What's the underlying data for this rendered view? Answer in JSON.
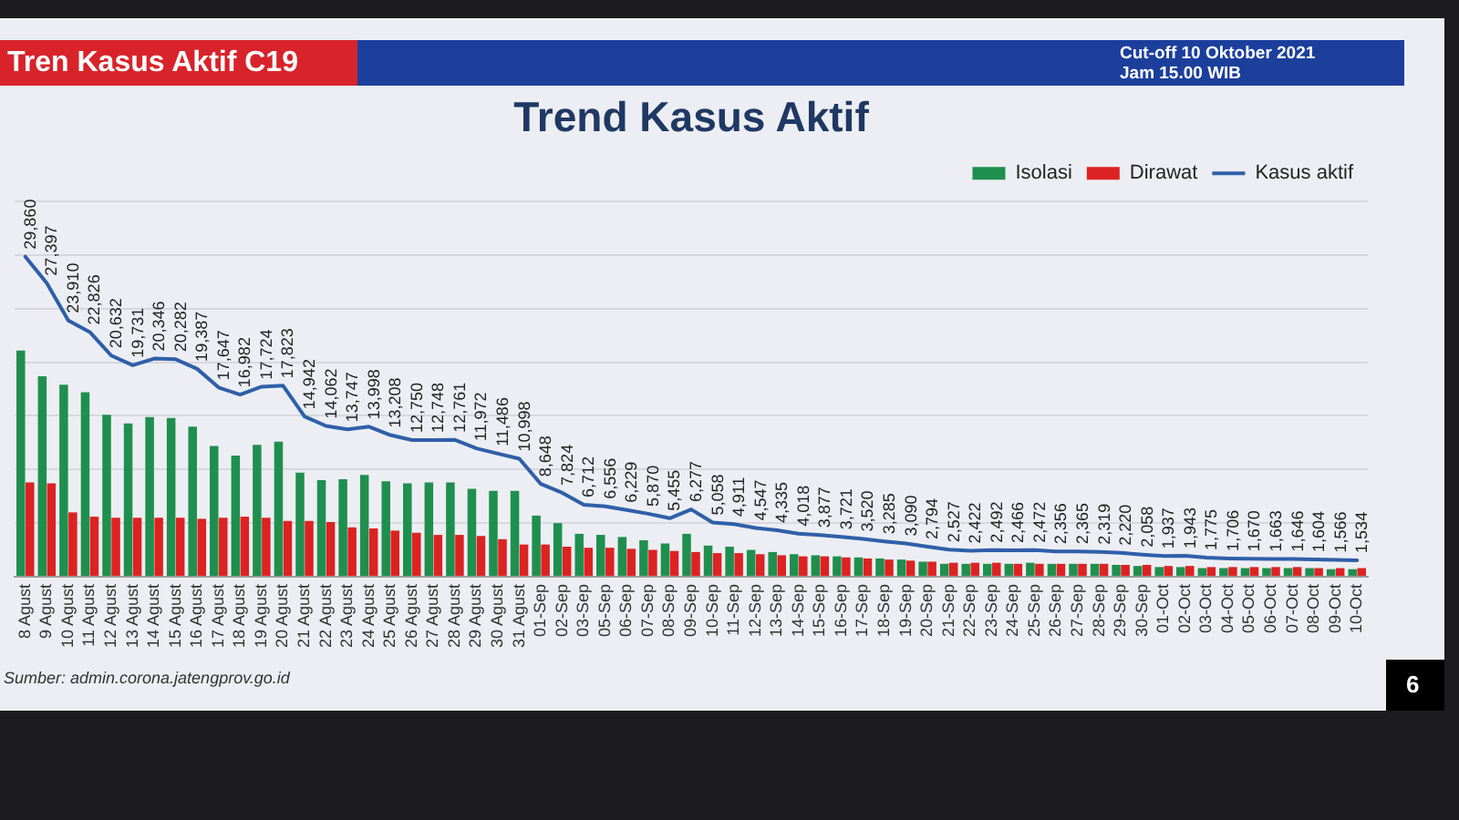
{
  "chart_data": {
    "type": "bar",
    "title": "Trend Kasus Aktif",
    "annotations": [
      "Tren Kasus Aktif C19",
      "Cut-off 10 Oktober 2021",
      "Jam 15.00 WIB",
      "Sumber: admin.corona.jatengprov.go.id",
      "6"
    ],
    "categories": [
      "8 Agust",
      "9 Agust",
      "10 Agust",
      "11 Agust",
      "12 Agust",
      "13 Agust",
      "14 Agust",
      "15 Agust",
      "16 Agust",
      "17 Agust",
      "18 Agust",
      "19 Agust",
      "20 Agust",
      "21 Agust",
      "22 Agust",
      "23 Agust",
      "24 Agust",
      "25 Agust",
      "26 Agust",
      "27 Agust",
      "28 Agust",
      "29 Agust",
      "30 Agust",
      "31 Agust",
      "01-Sep",
      "02-Sep",
      "03-Sep",
      "05-Sep",
      "06-Sep",
      "07-Sep",
      "08-Sep",
      "09-Sep",
      "10-Sep",
      "11-Sep",
      "12-Sep",
      "13-Sep",
      "14-Sep",
      "15-Sep",
      "16-Sep",
      "17-Sep",
      "18-Sep",
      "19-Sep",
      "20-Sep",
      "21-Sep",
      "22-Sep",
      "23-Sep",
      "24-Sep",
      "25-Sep",
      "26-Sep",
      "27-Sep",
      "28-Sep",
      "29-Sep",
      "30-Sep",
      "01-Oct",
      "02-Oct",
      "03-Oct",
      "04-Oct",
      "05-Oct",
      "06-Oct",
      "07-Oct",
      "08-Oct",
      "09-Oct",
      "10-Oct"
    ],
    "series": [
      {
        "name": "Isolasi",
        "color": "#1f8f4e",
        "values": [
          21100,
          18700,
          17900,
          17200,
          15100,
          14300,
          14900,
          14800,
          14000,
          12200,
          11300,
          12300,
          12600,
          9700,
          9000,
          9100,
          9500,
          8900,
          8700,
          8800,
          8800,
          8200,
          8000,
          8000,
          5700,
          5000,
          4000,
          3900,
          3700,
          3400,
          3100,
          4000,
          2900,
          2800,
          2500,
          2300,
          2100,
          2000,
          1900,
          1800,
          1700,
          1600,
          1400,
          1200,
          1200,
          1200,
          1200,
          1300,
          1200,
          1200,
          1200,
          1100,
          1000,
          900,
          900,
          800,
          800,
          800,
          800,
          800,
          800,
          700,
          700
        ]
      },
      {
        "name": "Dirawat",
        "color": "#dd2222",
        "values": [
          8800,
          8700,
          6000,
          5600,
          5500,
          5500,
          5500,
          5500,
          5400,
          5500,
          5600,
          5500,
          5200,
          5200,
          5100,
          4600,
          4500,
          4300,
          4100,
          3900,
          3900,
          3800,
          3500,
          3000,
          3000,
          2800,
          2700,
          2700,
          2600,
          2500,
          2400,
          2300,
          2200,
          2200,
          2100,
          2000,
          1900,
          1900,
          1800,
          1700,
          1600,
          1500,
          1400,
          1300,
          1300,
          1300,
          1200,
          1200,
          1200,
          1200,
          1200,
          1100,
          1100,
          1000,
          1000,
          900,
          900,
          900,
          900,
          900,
          800,
          800,
          800
        ]
      },
      {
        "name": "Kasus aktif",
        "type": "line",
        "color": "#2e5fa8",
        "values": [
          29860,
          27397,
          23910,
          22826,
          20632,
          19731,
          20346,
          20282,
          19387,
          17647,
          16982,
          17724,
          17823,
          14942,
          14062,
          13747,
          13998,
          13208,
          12750,
          12748,
          12761,
          11972,
          11486,
          10998,
          8648,
          7824,
          6712,
          6556,
          6229,
          5870,
          5455,
          6277,
          5058,
          4911,
          4547,
          4335,
          4018,
          3877,
          3721,
          3520,
          3285,
          3090,
          2794,
          2527,
          2422,
          2492,
          2466,
          2472,
          2356,
          2365,
          2319,
          2220,
          2058,
          1937,
          1943,
          1775,
          1706,
          1670,
          1663,
          1646,
          1604,
          1566,
          1534
        ],
        "value_labels": [
          "29,860",
          "27,397",
          "23,910",
          "22,826",
          "20,632",
          "19,731",
          "20,346",
          "20,282",
          "19,387",
          "17,647",
          "16,982",
          "17,724",
          "17,823",
          "14,942",
          "14,062",
          "13,747",
          "13,998",
          "13,208",
          "12,750",
          "12,748",
          "12,761",
          "11,972",
          "11,486",
          "10,998",
          "8,648",
          "7,824",
          "6,712",
          "6,556",
          "6,229",
          "5,870",
          "5,455",
          "6,277",
          "5,058",
          "4,911",
          "4,547",
          "4,335",
          "4,018",
          "3,877",
          "3,721",
          "3,520",
          "3,285",
          "3,090",
          "2,794",
          "2,527",
          "2,422",
          "2,492",
          "2,466",
          "2,472",
          "2,356",
          "2,365",
          "2,319",
          "2,220",
          "2,058",
          "1,937",
          "1,943",
          "1,775",
          "1,706",
          "1,670",
          "1,663",
          "1,646",
          "1,604",
          "1,566",
          "1,534"
        ]
      }
    ],
    "ylim": [
      0,
      35000
    ],
    "yticks": [
      {
        "value": 0,
        "label": null
      },
      {
        "value": 5000,
        "label": null
      },
      {
        "value": 10000,
        "label": null
      },
      {
        "value": 15000,
        "label": null
      },
      {
        "value": 20000,
        "label": null
      },
      {
        "value": 25000,
        "label": null
      },
      {
        "value": 30000,
        "label": null
      },
      {
        "value": 35000,
        "label": null
      }
    ],
    "tick_labels": "x",
    "grid": "y",
    "legend": "top right",
    "marker": "none"
  }
}
